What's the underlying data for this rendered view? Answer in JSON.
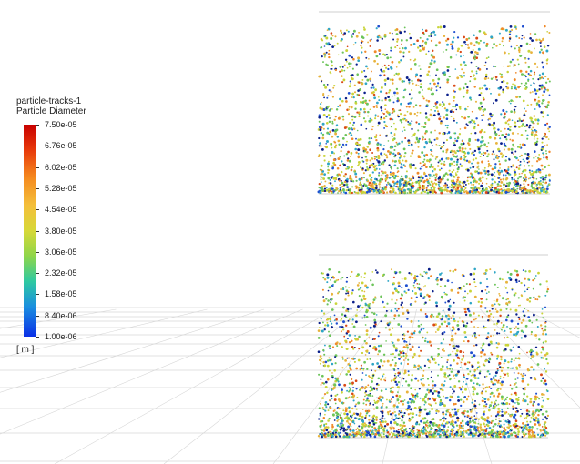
{
  "legend": {
    "title_line1": "particle-tracks-1",
    "title_line2": "Particle Diameter",
    "labels": [
      "7.50e-05",
      "6.76e-05",
      "6.02e-05",
      "5.28e-05",
      "4.54e-05",
      "3.80e-05",
      "3.06e-05",
      "2.32e-05",
      "1.58e-05",
      "8.40e-06",
      "1.00e-06"
    ],
    "unit": "[ m ]",
    "colormap": [
      "#c80000",
      "#e83a0a",
      "#f58a1f",
      "#f4bf3a",
      "#d7d838",
      "#8fd64a",
      "#2fc9a2",
      "#1a8ee0",
      "#0a2fe6"
    ]
  },
  "scene": {
    "background": "#ffffff",
    "grid_color": "#d6d6d6",
    "domains": [
      {
        "name": "upper-particle-domain"
      },
      {
        "name": "lower-particle-domain"
      }
    ],
    "particle_colors": [
      "#0a1f8a",
      "#1f4fd0",
      "#2fa6c6",
      "#6cc45a",
      "#c9d43a",
      "#e8b33c",
      "#f08a2a",
      "#d94a17"
    ]
  }
}
